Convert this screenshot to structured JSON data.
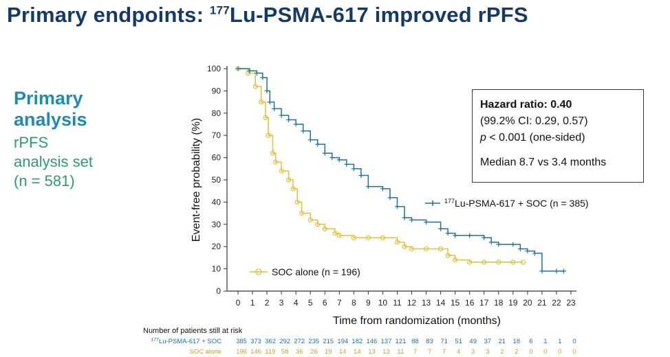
{
  "title": {
    "main": "Primary endpoints: ",
    "sup": "177",
    "rest": "Lu-PSMA-617 improved rPFS"
  },
  "left_panel": {
    "heading": "Primary analysis",
    "line1": "rPFS",
    "line2": "analysis set",
    "line3": "(n = 581)"
  },
  "hazard_box": {
    "label": "Hazard ratio: ",
    "value": "0.40",
    "ci": "(99.2% CI: 0.29, 0.57)",
    "p_prefix": "p",
    "p_rest": " < 0.001 (one-sided)",
    "median": "Median 8.7 vs 3.4 months"
  },
  "risk_table": {
    "header": "Number of patients still at risk",
    "rows": [
      {
        "label": "177Lu-PSMA-617 + SOC",
        "color": "#1f6fa0",
        "values": [
          385,
          373,
          362,
          292,
          272,
          235,
          215,
          194,
          182,
          146,
          137,
          121,
          88,
          83,
          71,
          51,
          49,
          37,
          21,
          18,
          6,
          1,
          1,
          0
        ]
      },
      {
        "label": "SOC alone",
        "color": "#c9a227",
        "values": [
          196,
          146,
          119,
          58,
          36,
          26,
          19,
          14,
          14,
          13,
          13,
          11,
          7,
          7,
          7,
          4,
          3,
          3,
          2,
          2,
          0,
          0,
          0,
          0
        ]
      }
    ]
  },
  "chart_data": {
    "type": "line",
    "title": "",
    "xlabel": "Time from randomization (months)",
    "ylabel": "Event-free probability (%)",
    "xlim": [
      0,
      23
    ],
    "ylim": [
      0,
      100
    ],
    "xticks": [
      0,
      1,
      2,
      3,
      4,
      5,
      6,
      7,
      8,
      9,
      10,
      11,
      12,
      13,
      14,
      15,
      16,
      17,
      18,
      19,
      20,
      21,
      22,
      23
    ],
    "yticks": [
      0,
      10,
      20,
      30,
      40,
      50,
      60,
      70,
      80,
      90,
      100
    ],
    "grid": false,
    "series": [
      {
        "name": "177Lu-PSMA-617 + SOC (n = 385)",
        "color": "#1f6fa0",
        "step": true,
        "x": [
          0,
          0.8,
          1.3,
          1.7,
          2.0,
          2.2,
          2.5,
          3.0,
          3.5,
          4.0,
          4.5,
          5.0,
          5.5,
          6.0,
          6.5,
          7.0,
          7.5,
          8.0,
          8.5,
          9.0,
          10.0,
          10.5,
          11.0,
          11.5,
          12.0,
          13.0,
          14.0,
          14.5,
          15.0,
          16.0,
          17.0,
          17.5,
          18.0,
          19.0,
          19.5,
          20.0,
          20.5,
          21.0,
          22.0,
          22.5
        ],
        "y": [
          100,
          99,
          98,
          96,
          90,
          85,
          82,
          79,
          77,
          75,
          72,
          68,
          66,
          62,
          60,
          59,
          57,
          55,
          52,
          47,
          46,
          42,
          38,
          33,
          32,
          31,
          28,
          26,
          25,
          25,
          24,
          22,
          21,
          21,
          19,
          18,
          17,
          9,
          9,
          9
        ]
      },
      {
        "name": "SOC alone (n = 196)",
        "color": "#e3bf3a",
        "step": true,
        "x": [
          0,
          0.7,
          1.2,
          1.6,
          1.9,
          2.1,
          2.4,
          2.6,
          3.0,
          3.5,
          3.8,
          4.1,
          4.4,
          5.0,
          5.5,
          6.0,
          6.7,
          7.0,
          8.0,
          9.0,
          10.0,
          11.0,
          11.5,
          12.0,
          13.0,
          14.0,
          14.5,
          15.0,
          16.0,
          17.0,
          18.0,
          19.0,
          19.7
        ],
        "y": [
          100,
          98,
          92,
          85,
          78,
          70,
          62,
          58,
          54,
          50,
          46,
          40,
          35,
          32,
          30,
          28,
          26,
          25,
          24,
          24,
          24,
          22,
          20,
          19,
          19,
          19,
          16,
          14,
          13,
          13,
          13,
          13,
          13
        ]
      }
    ],
    "annotations": [
      "177Lu-PSMA-617 + SOC (n = 385)",
      "SOC alone (n = 196)"
    ]
  }
}
